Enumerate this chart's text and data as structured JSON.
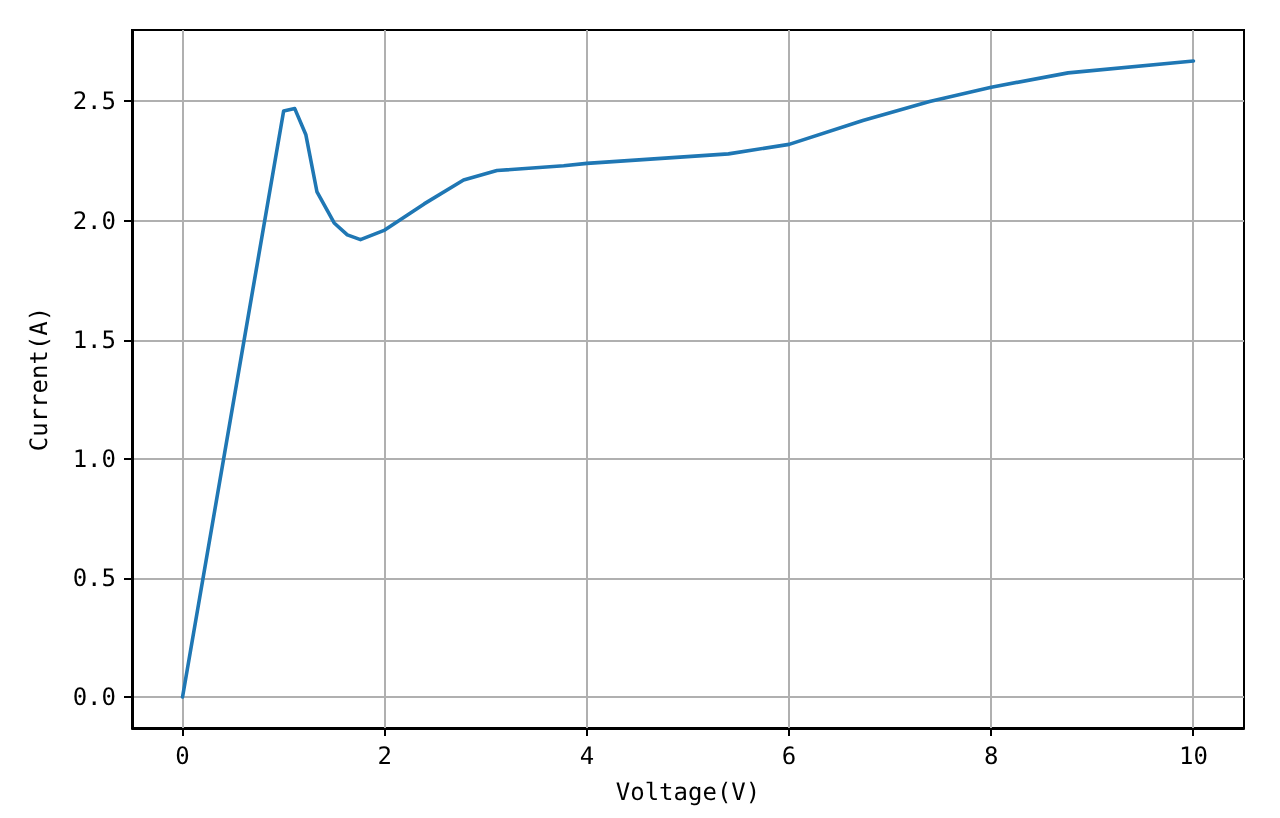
{
  "chart_data": {
    "type": "line",
    "xlabel": "Voltage(V)",
    "ylabel": "Current(A)",
    "xlim": [
      -0.5,
      10.5
    ],
    "ylim": [
      -0.13,
      2.8
    ],
    "xticks": [
      0,
      2,
      4,
      6,
      8,
      10
    ],
    "yticks": [
      {
        "value": 0,
        "label": "0.0"
      },
      0.5,
      {
        "value": 1,
        "label": "1.0"
      },
      1.5,
      {
        "value": 2,
        "label": "2.0"
      },
      2.5
    ],
    "grid": true,
    "marker": "none",
    "line_style": "solid",
    "series": [
      {
        "color": "#1f77b4",
        "x": [
          0,
          1.0,
          1.11,
          1.22,
          1.33,
          1.5,
          1.63,
          1.76,
          2.0,
          2.39,
          2.78,
          3.11,
          3.77,
          4.0,
          5.4,
          6.0,
          6.73,
          7.39,
          8.0,
          8.76,
          10.0
        ],
        "values": [
          0,
          2.46,
          2.47,
          2.36,
          2.12,
          1.99,
          1.94,
          1.92,
          1.96,
          2.07,
          2.17,
          2.21,
          2.23,
          2.24,
          2.28,
          2.32,
          2.42,
          2.5,
          2.56,
          2.62,
          2.67
        ]
      }
    ]
  }
}
